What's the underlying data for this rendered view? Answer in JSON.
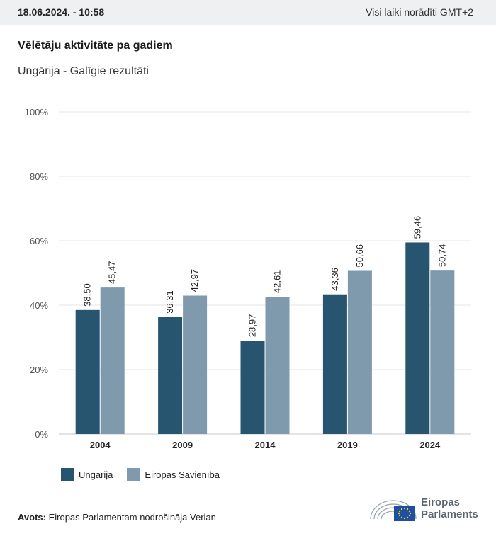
{
  "header": {
    "date": "18.06.2024. - 10:58",
    "timezone_note": "Visi laiki norādīti GMT+2"
  },
  "title": "Vēlētāju aktivitāte pa gadiem",
  "subtitle": "Ungārija - Galīgie rezultāti",
  "colors": {
    "hungary": "#27556f",
    "eu": "#7f9aad",
    "grid": "#e4e4e4",
    "axis": "#c8c8c8"
  },
  "chart_data": {
    "type": "bar",
    "categories": [
      "2004",
      "2009",
      "2014",
      "2019",
      "2024"
    ],
    "series": [
      {
        "name": "Ungārija",
        "values": [
          38.5,
          36.31,
          28.97,
          43.36,
          59.46
        ],
        "labels": [
          "38,50",
          "36,31",
          "28,97",
          "43,36",
          "59,46"
        ]
      },
      {
        "name": "Eiropas Savienība",
        "values": [
          45.47,
          42.97,
          42.61,
          50.66,
          50.74
        ],
        "labels": [
          "45,47",
          "42,97",
          "42,61",
          "50,66",
          "50,74"
        ]
      }
    ],
    "ylim": [
      0,
      100
    ],
    "yticks": [
      "0%",
      "20%",
      "40%",
      "60%",
      "80%",
      "100%"
    ],
    "grid": true,
    "legend": "bottom-left"
  },
  "source": {
    "label": "Avots:",
    "text": " Eiropas Parlamentam nodrošināja Verian"
  },
  "logo": {
    "line1": "Eiropas",
    "line2": "Parlaments"
  }
}
